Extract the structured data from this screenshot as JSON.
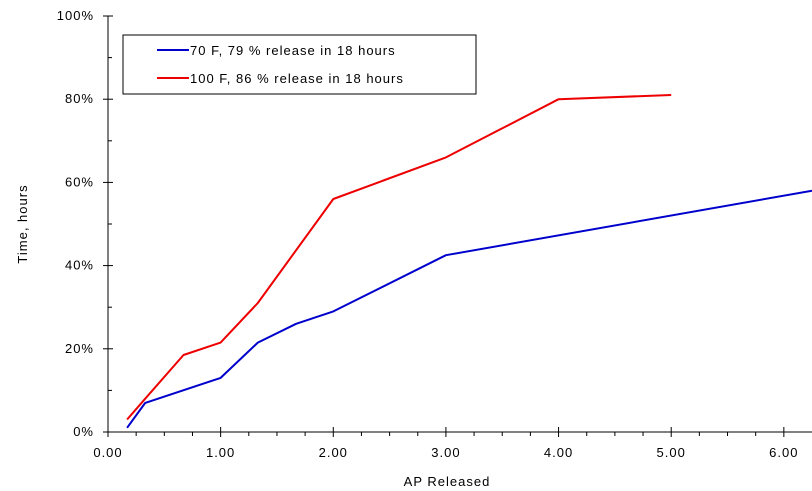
{
  "chart_data": {
    "type": "line",
    "title": "",
    "xlabel": "AP Released",
    "ylabel": "Time, hours",
    "xlim": [
      0,
      6.25
    ],
    "ylim": [
      0,
      100
    ],
    "x_ticks": [
      0,
      1,
      2,
      3,
      4,
      5,
      6
    ],
    "x_tick_labels": [
      "0.00",
      "1.00",
      "2.00",
      "3.00",
      "4.00",
      "5.00",
      "6.00"
    ],
    "y_ticks": [
      0,
      20,
      40,
      60,
      80,
      100
    ],
    "y_tick_labels": [
      "0%",
      "20%",
      "40%",
      "60%",
      "80%",
      "100%"
    ],
    "grid": false,
    "legend_position": "top-left",
    "series": [
      {
        "name": "70 F, 79 % release in 18 hours",
        "color": "#0000cc",
        "x": [
          0.17,
          0.33,
          1.0,
          1.33,
          1.67,
          2.0,
          3.0,
          6.25
        ],
        "y": [
          1,
          7,
          13,
          21.5,
          26,
          29,
          42.5,
          58
        ]
      },
      {
        "name": "100 F, 86 % release in 18 hours",
        "color": "#ee0000",
        "x": [
          0.17,
          0.33,
          0.67,
          1.0,
          1.33,
          2.0,
          3.0,
          4.0,
          5.0
        ],
        "y": [
          3,
          8,
          18.5,
          21.5,
          31,
          56,
          66,
          80,
          81
        ]
      }
    ]
  }
}
